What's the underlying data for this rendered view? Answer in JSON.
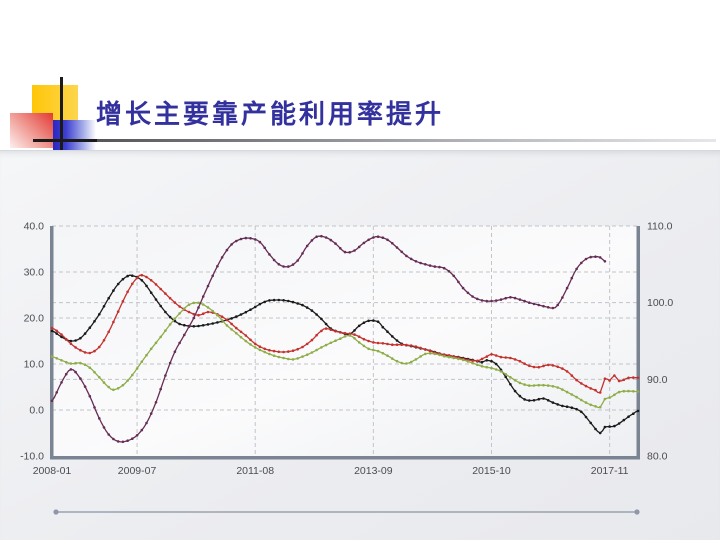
{
  "slide": {
    "title": "增长主要靠产能利用率提升",
    "colors": {
      "title_text": "#32319d",
      "decor_yellow": "#ffc608",
      "decor_red": "#e23a33",
      "decor_blue": "#2a28c0",
      "decor_black_lines": "#1a1a1a",
      "slider": "#8e98a9"
    }
  },
  "chart_data": {
    "type": "line",
    "title": "",
    "legend": "none",
    "grid": true,
    "x_axis": {
      "total_months": 124,
      "tick_labels": [
        "2008-01",
        "2009-07",
        "2011-08",
        "2013-09",
        "2015-10",
        "2017-11"
      ],
      "tick_months": [
        0,
        18,
        43,
        68,
        93,
        118
      ]
    },
    "left_axis": {
      "min": -10,
      "max": 40,
      "tick_labels": [
        "40.0",
        "30.0",
        "20.0",
        "10.0",
        "0.0",
        "-10.0"
      ],
      "tick_values": [
        40,
        30,
        20,
        10,
        0,
        -10
      ],
      "grid_values": [
        40,
        30,
        20,
        10,
        0
      ]
    },
    "right_axis": {
      "min": 80,
      "max": 110,
      "tick_labels": [
        "110.0",
        "100.0",
        "90.0",
        "80.0"
      ],
      "tick_values": [
        110,
        100,
        90,
        80
      ],
      "grid_values": [
        100,
        90
      ]
    },
    "style": {
      "grid_color": "#c3c4c8",
      "axis_bar_color": "#7b8492",
      "tick_text_color": "#4c4c50",
      "plot_bg_from": "#f4f5f7",
      "plot_bg_mid": "#fbfbfc",
      "plot_bg_to": "#edeff2"
    },
    "series": [
      {
        "name": "black",
        "axis": "left",
        "color": "#1a1a1a",
        "points": [
          [
            0,
            17.2
          ],
          [
            2,
            15.9
          ],
          [
            4,
            15.0
          ],
          [
            6,
            15.6
          ],
          [
            8,
            17.9
          ],
          [
            10,
            20.8
          ],
          [
            12,
            24.3
          ],
          [
            14,
            27.4
          ],
          [
            16,
            29.1
          ],
          [
            17,
            29.2
          ],
          [
            19,
            28.2
          ],
          [
            21,
            25.5
          ],
          [
            23,
            22.6
          ],
          [
            25,
            20.2
          ],
          [
            27,
            18.7
          ],
          [
            30,
            18.2
          ],
          [
            33,
            18.6
          ],
          [
            36,
            19.3
          ],
          [
            39,
            20.3
          ],
          [
            42,
            21.8
          ],
          [
            45,
            23.5
          ],
          [
            47,
            23.9
          ],
          [
            50,
            23.7
          ],
          [
            53,
            22.8
          ],
          [
            55,
            21.6
          ],
          [
            57,
            19.8
          ],
          [
            59,
            17.7
          ],
          [
            61,
            16.9
          ],
          [
            63,
            16.5
          ],
          [
            65,
            18.3
          ],
          [
            67,
            19.4
          ],
          [
            69,
            19.2
          ],
          [
            70,
            18.0
          ],
          [
            72,
            16.0
          ],
          [
            74,
            14.4
          ],
          [
            76,
            13.9
          ],
          [
            78,
            13.4
          ],
          [
            80,
            12.9
          ],
          [
            83,
            12.0
          ],
          [
            86,
            11.5
          ],
          [
            89,
            10.9
          ],
          [
            91,
            10.4
          ],
          [
            92,
            10.8
          ],
          [
            94,
            10.0
          ],
          [
            96,
            7.2
          ],
          [
            98,
            4.1
          ],
          [
            100,
            2.3
          ],
          [
            102,
            2.1
          ],
          [
            104,
            2.5
          ],
          [
            106,
            1.6
          ],
          [
            108,
            0.9
          ],
          [
            110,
            0.5
          ],
          [
            112,
            -0.4
          ],
          [
            114,
            -2.8
          ],
          [
            116,
            -5.0
          ],
          [
            117,
            -3.7
          ],
          [
            119,
            -3.5
          ],
          [
            121,
            -2.2
          ],
          [
            123,
            -0.8
          ],
          [
            124,
            -0.2
          ]
        ]
      },
      {
        "name": "red",
        "axis": "left",
        "color": "#c4322f",
        "points": [
          [
            0,
            17.8
          ],
          [
            2,
            16.4
          ],
          [
            4,
            14.4
          ],
          [
            6,
            13.0
          ],
          [
            8,
            12.4
          ],
          [
            10,
            13.7
          ],
          [
            12,
            17.0
          ],
          [
            14,
            21.4
          ],
          [
            16,
            25.7
          ],
          [
            18,
            28.7
          ],
          [
            19,
            29.3
          ],
          [
            21,
            28.2
          ],
          [
            23,
            26.3
          ],
          [
            25,
            24.3
          ],
          [
            27,
            22.5
          ],
          [
            29,
            21.3
          ],
          [
            31,
            20.6
          ],
          [
            33,
            21.3
          ],
          [
            35,
            20.8
          ],
          [
            37,
            19.6
          ],
          [
            39,
            17.8
          ],
          [
            41,
            16.2
          ],
          [
            43,
            14.4
          ],
          [
            45,
            13.3
          ],
          [
            47,
            12.8
          ],
          [
            49,
            12.6
          ],
          [
            51,
            12.9
          ],
          [
            53,
            13.7
          ],
          [
            55,
            15.2
          ],
          [
            57,
            17.2
          ],
          [
            58,
            17.7
          ],
          [
            60,
            17.1
          ],
          [
            62,
            16.7
          ],
          [
            64,
            16.4
          ],
          [
            66,
            15.4
          ],
          [
            68,
            14.7
          ],
          [
            70,
            14.5
          ],
          [
            72,
            14.2
          ],
          [
            74,
            14.2
          ],
          [
            76,
            14.0
          ],
          [
            78,
            13.5
          ],
          [
            80,
            12.8
          ],
          [
            82,
            12.2
          ],
          [
            84,
            11.9
          ],
          [
            86,
            11.4
          ],
          [
            88,
            10.9
          ],
          [
            90,
            10.7
          ],
          [
            92,
            11.6
          ],
          [
            93,
            12.1
          ],
          [
            95,
            11.5
          ],
          [
            97,
            11.3
          ],
          [
            99,
            10.6
          ],
          [
            101,
            9.6
          ],
          [
            103,
            9.3
          ],
          [
            105,
            9.8
          ],
          [
            107,
            9.4
          ],
          [
            109,
            8.4
          ],
          [
            111,
            6.5
          ],
          [
            113,
            5.2
          ],
          [
            115,
            4.3
          ],
          [
            116,
            3.8
          ],
          [
            117,
            6.8
          ],
          [
            118,
            6.4
          ],
          [
            119,
            7.5
          ],
          [
            120,
            6.3
          ],
          [
            122,
            7.0
          ],
          [
            124,
            7.0
          ]
        ]
      },
      {
        "name": "green",
        "axis": "left",
        "color": "#8fad49",
        "points": [
          [
            0,
            11.6
          ],
          [
            2,
            10.8
          ],
          [
            4,
            10.1
          ],
          [
            6,
            10.2
          ],
          [
            8,
            9.2
          ],
          [
            10,
            7.1
          ],
          [
            12,
            5.0
          ],
          [
            13,
            4.4
          ],
          [
            15,
            5.4
          ],
          [
            17,
            7.6
          ],
          [
            19,
            10.5
          ],
          [
            21,
            13.3
          ],
          [
            23,
            15.9
          ],
          [
            25,
            18.6
          ],
          [
            27,
            21.0
          ],
          [
            29,
            22.9
          ],
          [
            31,
            23.3
          ],
          [
            33,
            22.3
          ],
          [
            35,
            20.6
          ],
          [
            37,
            18.4
          ],
          [
            39,
            16.7
          ],
          [
            41,
            15.0
          ],
          [
            43,
            13.6
          ],
          [
            45,
            12.6
          ],
          [
            47,
            11.8
          ],
          [
            49,
            11.3
          ],
          [
            51,
            11.0
          ],
          [
            53,
            11.6
          ],
          [
            55,
            12.5
          ],
          [
            57,
            13.6
          ],
          [
            59,
            14.6
          ],
          [
            61,
            15.5
          ],
          [
            63,
            16.2
          ],
          [
            65,
            14.7
          ],
          [
            67,
            13.3
          ],
          [
            69,
            12.8
          ],
          [
            71,
            11.8
          ],
          [
            73,
            10.6
          ],
          [
            75,
            10.1
          ],
          [
            77,
            11.0
          ],
          [
            79,
            12.2
          ],
          [
            81,
            12.2
          ],
          [
            83,
            11.7
          ],
          [
            85,
            11.3
          ],
          [
            87,
            10.9
          ],
          [
            89,
            10.2
          ],
          [
            91,
            9.5
          ],
          [
            93,
            9.1
          ],
          [
            95,
            8.4
          ],
          [
            97,
            7.1
          ],
          [
            99,
            5.9
          ],
          [
            101,
            5.3
          ],
          [
            103,
            5.4
          ],
          [
            105,
            5.3
          ],
          [
            107,
            4.9
          ],
          [
            109,
            3.9
          ],
          [
            111,
            2.8
          ],
          [
            113,
            1.6
          ],
          [
            115,
            0.8
          ],
          [
            116,
            0.6
          ],
          [
            117,
            2.4
          ],
          [
            118,
            2.7
          ],
          [
            120,
            3.9
          ],
          [
            122,
            4.1
          ],
          [
            124,
            4.0
          ]
        ]
      },
      {
        "name": "purple",
        "axis": "right",
        "color": "#662d55",
        "points": [
          [
            0,
            87.2
          ],
          [
            2,
            89.6
          ],
          [
            4,
            91.3
          ],
          [
            6,
            90.1
          ],
          [
            8,
            87.8
          ],
          [
            10,
            84.9
          ],
          [
            12,
            82.8
          ],
          [
            14,
            81.9
          ],
          [
            16,
            82.0
          ],
          [
            18,
            82.7
          ],
          [
            20,
            84.3
          ],
          [
            22,
            87.0
          ],
          [
            24,
            90.5
          ],
          [
            26,
            93.6
          ],
          [
            28,
            95.8
          ],
          [
            30,
            98.0
          ],
          [
            32,
            100.8
          ],
          [
            34,
            103.5
          ],
          [
            36,
            105.9
          ],
          [
            38,
            107.6
          ],
          [
            40,
            108.3
          ],
          [
            42,
            108.4
          ],
          [
            44,
            107.9
          ],
          [
            46,
            106.3
          ],
          [
            48,
            105.0
          ],
          [
            50,
            104.7
          ],
          [
            52,
            105.5
          ],
          [
            54,
            107.4
          ],
          [
            56,
            108.6
          ],
          [
            58,
            108.5
          ],
          [
            60,
            107.7
          ],
          [
            62,
            106.6
          ],
          [
            64,
            106.8
          ],
          [
            66,
            107.8
          ],
          [
            68,
            108.5
          ],
          [
            69,
            108.6
          ],
          [
            71,
            108.2
          ],
          [
            73,
            107.2
          ],
          [
            75,
            106.1
          ],
          [
            77,
            105.4
          ],
          [
            79,
            105.0
          ],
          [
            81,
            104.7
          ],
          [
            83,
            104.5
          ],
          [
            85,
            103.5
          ],
          [
            87,
            101.9
          ],
          [
            89,
            100.8
          ],
          [
            91,
            100.3
          ],
          [
            93,
            100.2
          ],
          [
            95,
            100.4
          ],
          [
            97,
            100.7
          ],
          [
            99,
            100.4
          ],
          [
            101,
            100.0
          ],
          [
            103,
            99.7
          ],
          [
            105,
            99.4
          ],
          [
            106,
            99.3
          ],
          [
            107,
            99.7
          ],
          [
            109,
            101.9
          ],
          [
            111,
            104.4
          ],
          [
            113,
            105.7
          ],
          [
            115,
            106.0
          ],
          [
            116,
            105.9
          ],
          [
            117,
            105.4
          ]
        ]
      }
    ]
  }
}
